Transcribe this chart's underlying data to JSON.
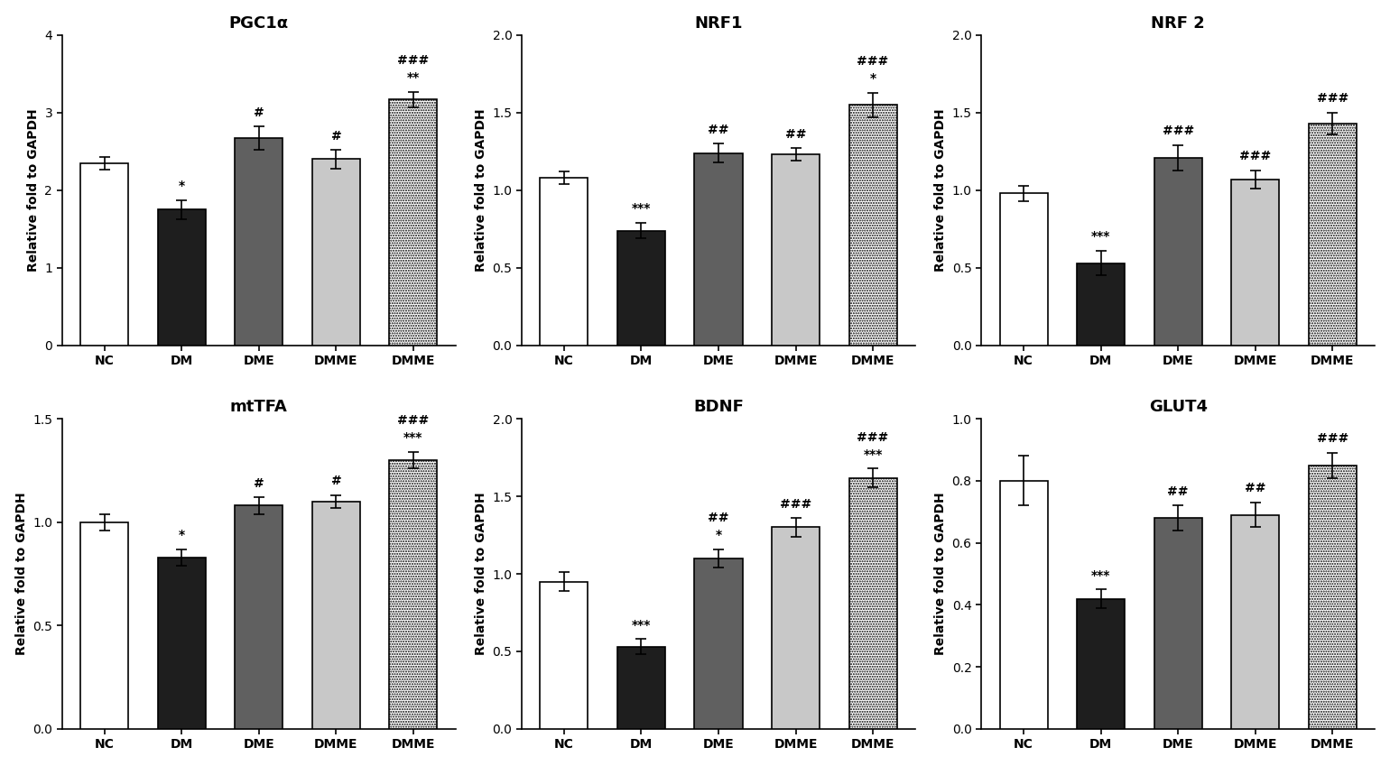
{
  "subplots": [
    {
      "title": "PGC1α",
      "ylabel": "Relative fold to GAPDH",
      "categories": [
        "NC",
        "DM",
        "DME",
        "DMME",
        "DMME"
      ],
      "values": [
        2.35,
        1.75,
        2.67,
        2.4,
        3.17
      ],
      "errors": [
        0.08,
        0.12,
        0.15,
        0.12,
        0.1
      ],
      "ylim": [
        0,
        4
      ],
      "yticks": [
        0,
        1,
        2,
        3,
        4
      ],
      "ytick_labels": [
        "0",
        "1",
        "2",
        "3",
        "4"
      ],
      "sig_stars": [
        "",
        "*",
        "",
        "",
        "**"
      ],
      "sig_hash": [
        "",
        "",
        "#",
        "#",
        "###"
      ]
    },
    {
      "title": "NRF1",
      "ylabel": "Relative fold to GAPDH",
      "categories": [
        "NC",
        "DM",
        "DME",
        "DMME",
        "DMME"
      ],
      "values": [
        1.08,
        0.74,
        1.24,
        1.23,
        1.55
      ],
      "errors": [
        0.04,
        0.05,
        0.06,
        0.04,
        0.08
      ],
      "ylim": [
        0.0,
        2.0
      ],
      "yticks": [
        0.0,
        0.5,
        1.0,
        1.5,
        2.0
      ],
      "ytick_labels": [
        "0.0",
        "0.5",
        "1.0",
        "1.5",
        "2.0"
      ],
      "sig_stars": [
        "",
        "***",
        "",
        "",
        "*"
      ],
      "sig_hash": [
        "",
        "",
        "##",
        "##",
        "###"
      ]
    },
    {
      "title": "NRF 2",
      "ylabel": "Relative fold to GAPDH",
      "categories": [
        "NC",
        "DM",
        "DME",
        "DMME",
        "DMME"
      ],
      "values": [
        0.98,
        0.53,
        1.21,
        1.07,
        1.43
      ],
      "errors": [
        0.05,
        0.08,
        0.08,
        0.06,
        0.07
      ],
      "ylim": [
        0.0,
        2.0
      ],
      "yticks": [
        0.0,
        0.5,
        1.0,
        1.5,
        2.0
      ],
      "ytick_labels": [
        "0.0",
        "0.5",
        "1.0",
        "1.5",
        "2.0"
      ],
      "sig_stars": [
        "",
        "***",
        "",
        "",
        ""
      ],
      "sig_hash": [
        "",
        "",
        "###",
        "###",
        "###"
      ]
    },
    {
      "title": "mtTFA",
      "ylabel": "Relative fold to GAPDH",
      "categories": [
        "NC",
        "DM",
        "DME",
        "DMME",
        "DMME"
      ],
      "values": [
        1.0,
        0.83,
        1.08,
        1.1,
        1.3
      ],
      "errors": [
        0.04,
        0.04,
        0.04,
        0.03,
        0.04
      ],
      "ylim": [
        0.0,
        1.5
      ],
      "yticks": [
        0.0,
        0.5,
        1.0,
        1.5
      ],
      "ytick_labels": [
        "0.0",
        "0.5",
        "1.0",
        "1.5"
      ],
      "sig_stars": [
        "",
        "*",
        "",
        "",
        "***"
      ],
      "sig_hash": [
        "",
        "",
        "#",
        "#",
        "###"
      ]
    },
    {
      "title": "BDNF",
      "ylabel": "Relative fold to GAPDH",
      "categories": [
        "NC",
        "DM",
        "DME",
        "DMME",
        "DMME"
      ],
      "values": [
        0.95,
        0.53,
        1.1,
        1.3,
        1.62
      ],
      "errors": [
        0.06,
        0.05,
        0.06,
        0.06,
        0.06
      ],
      "ylim": [
        0.0,
        2.0
      ],
      "yticks": [
        0.0,
        0.5,
        1.0,
        1.5,
        2.0
      ],
      "ytick_labels": [
        "0.0",
        "0.5",
        "1.0",
        "1.5",
        "2.0"
      ],
      "sig_stars": [
        "",
        "***",
        "*",
        "",
        "***"
      ],
      "sig_hash": [
        "",
        "",
        "##",
        "###",
        "###"
      ]
    },
    {
      "title": "GLUT4",
      "ylabel": "Relative fold to GAPDH",
      "categories": [
        "NC",
        "DM",
        "DME",
        "DMME",
        "DMME"
      ],
      "values": [
        0.8,
        0.42,
        0.68,
        0.69,
        0.85
      ],
      "errors": [
        0.08,
        0.03,
        0.04,
        0.04,
        0.04
      ],
      "ylim": [
        0.0,
        1.0
      ],
      "yticks": [
        0.0,
        0.2,
        0.4,
        0.6,
        0.8,
        1.0
      ],
      "ytick_labels": [
        "0.0",
        "0.2",
        "0.4",
        "0.6",
        "0.8",
        "1.0"
      ],
      "sig_stars": [
        "",
        "***",
        "",
        "",
        ""
      ],
      "sig_hash": [
        "",
        "",
        "##",
        "##",
        "###"
      ]
    }
  ],
  "bar_face_colors": [
    "white",
    "#1e1e1e",
    "#606060",
    "#c8c8c8",
    "white"
  ],
  "bar_hatch": [
    null,
    null,
    null,
    null,
    "......"
  ],
  "bar_edgecolor": "black",
  "bar_width": 0.62,
  "background_color": "white",
  "title_fontsize": 13,
  "label_fontsize": 10,
  "tick_fontsize": 10,
  "sig_fontsize": 10
}
